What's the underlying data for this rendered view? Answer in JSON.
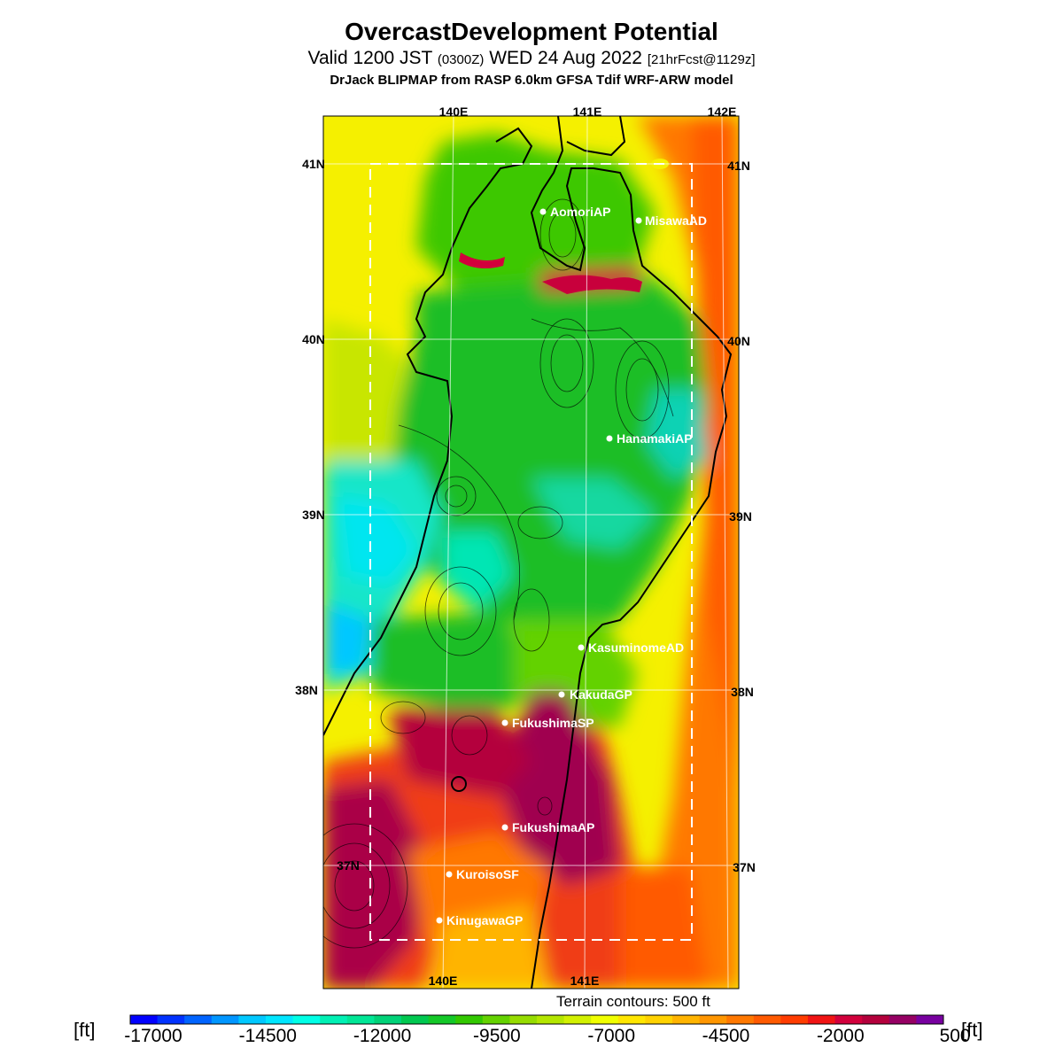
{
  "header": {
    "title": "OvercastDevelopment Potential",
    "subtitle_main": "Valid 1200 JST",
    "subtitle_zone": "(0300Z)",
    "subtitle_date": "WED 24 Aug 2022",
    "subtitle_fcst": "[21hrFcst@1129z]",
    "model_line": "DrJack BLIPMAP from RASP 6.0km GFSA Tdif WRF-ARW model"
  },
  "grid": {
    "top_lon_labels": [
      "140E",
      "141E",
      "142E"
    ],
    "bottom_lon_labels": [
      "140E",
      "141E"
    ],
    "left_lat_labels": [
      "41N",
      "40N",
      "39N",
      "38N",
      "37N"
    ],
    "right_lat_labels": [
      "41N",
      "40N",
      "39N",
      "38N",
      "37N"
    ]
  },
  "stations": [
    {
      "name": "AomoriAP"
    },
    {
      "name": "MisawaAD"
    },
    {
      "name": "HanamakiAP"
    },
    {
      "name": "KasuminomeAD"
    },
    {
      "name": "KakudaGP"
    },
    {
      "name": "FukushimaSP"
    },
    {
      "name": "FukushimaAP"
    },
    {
      "name": "KuroisoSF"
    },
    {
      "name": "KinugawaGP"
    }
  ],
  "terrain_note": "Terrain contours: 500 ft",
  "colorbar": {
    "unit": "[ft]",
    "labels": [
      "-17000",
      "-14500",
      "-12000",
      "-9500",
      "-7000",
      "-4500",
      "-2000",
      "500"
    ],
    "colors": [
      "#0000ff",
      "#0032ff",
      "#0064ff",
      "#0096ff",
      "#00c8ff",
      "#00e6ff",
      "#00ffe6",
      "#00f0b4",
      "#00e696",
      "#00d278",
      "#00c850",
      "#14c828",
      "#32c800",
      "#64d200",
      "#96dc00",
      "#b4e600",
      "#d2f000",
      "#f0ff00",
      "#ffe600",
      "#ffd200",
      "#ffb400",
      "#ff9600",
      "#ff7800",
      "#ff5a00",
      "#ff3c00",
      "#f01414",
      "#d2003c",
      "#b4003c",
      "#960064",
      "#7800a0"
    ]
  }
}
